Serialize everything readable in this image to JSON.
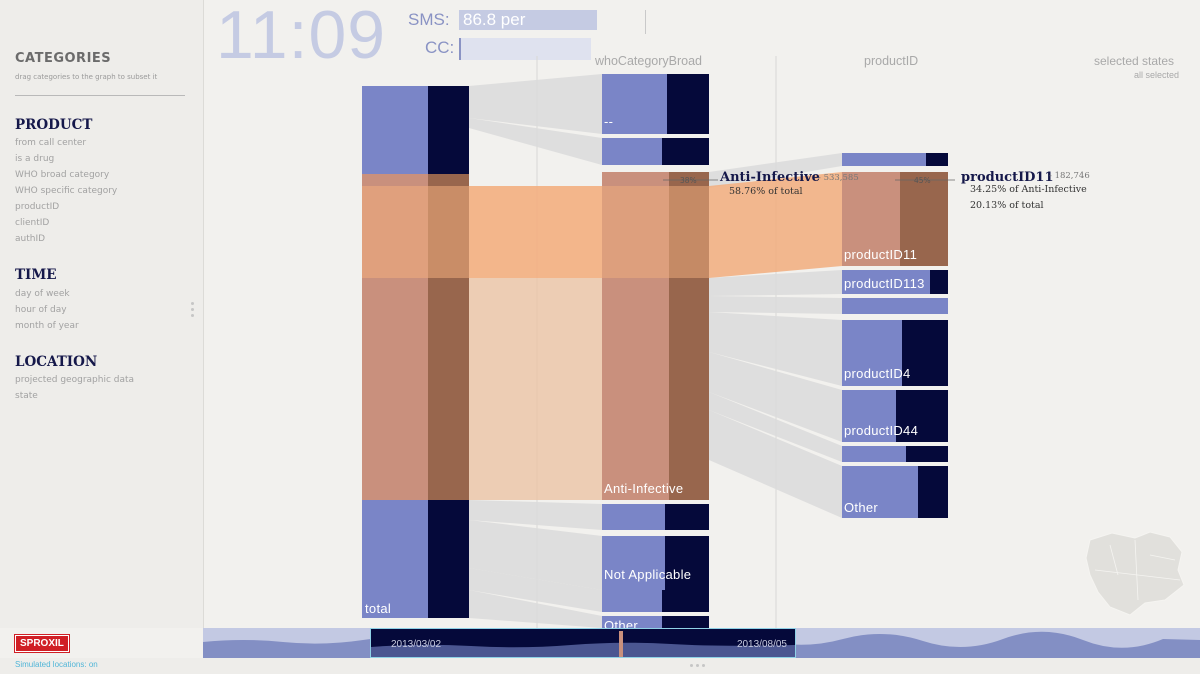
{
  "sidebar": {
    "title": "CATEGORIES",
    "subtitle": "drag categories to the graph to subset it",
    "sections": [
      {
        "heading": "PRODUCT",
        "items": [
          "from call center",
          "is a drug",
          "WHO broad category",
          "WHO specific category",
          "productID",
          "clientID",
          "authID"
        ]
      },
      {
        "heading": "TIME",
        "items": [
          "day of week",
          "hour of day",
          "month of year"
        ]
      },
      {
        "heading": "LOCATION",
        "items": [
          "projected geographic data",
          "state"
        ]
      }
    ],
    "brand": "SPROXIL",
    "footer_status": "Simulated locations: on"
  },
  "hud": {
    "clock": "11:09",
    "sms_label": "SMS:",
    "sms_value": "86.8 per",
    "cc_label": "CC:"
  },
  "columns": {
    "who_category_broad": "whoCategoryBroad",
    "product_id": "productID",
    "selected_states": "selected states",
    "selected_states_value": "all selected"
  },
  "bars": {
    "total": "total",
    "cat_dash": "--",
    "cat_anti_infective": "Anti-Infective",
    "cat_not_applicable": "Not Applicable",
    "cat_other": "Other",
    "p11": "productID11",
    "p113": "productID113",
    "p4": "productID4",
    "p44": "productID44",
    "p_other": "Other"
  },
  "annotations": {
    "anti_title": "Anti-Infective",
    "anti_count": "- 533,585",
    "anti_share": "58.76% of total",
    "anti_pct": "38%",
    "p11_title": "productID11",
    "p11_count": "- 182,746",
    "p11_share1": "34.25% of Anti-Infective",
    "p11_share2": "20.13% of total",
    "p11_pct": "45%"
  },
  "timeline": {
    "start": "2013/03/02",
    "end": "2013/08/05"
  },
  "colors": {
    "blue": "#7a85c7",
    "navy": "#05093a",
    "highlight": "#f2ad7d",
    "selected": "#c9907d",
    "selected_dark": "#98664d",
    "ribbon": "#dcdcdc"
  }
}
